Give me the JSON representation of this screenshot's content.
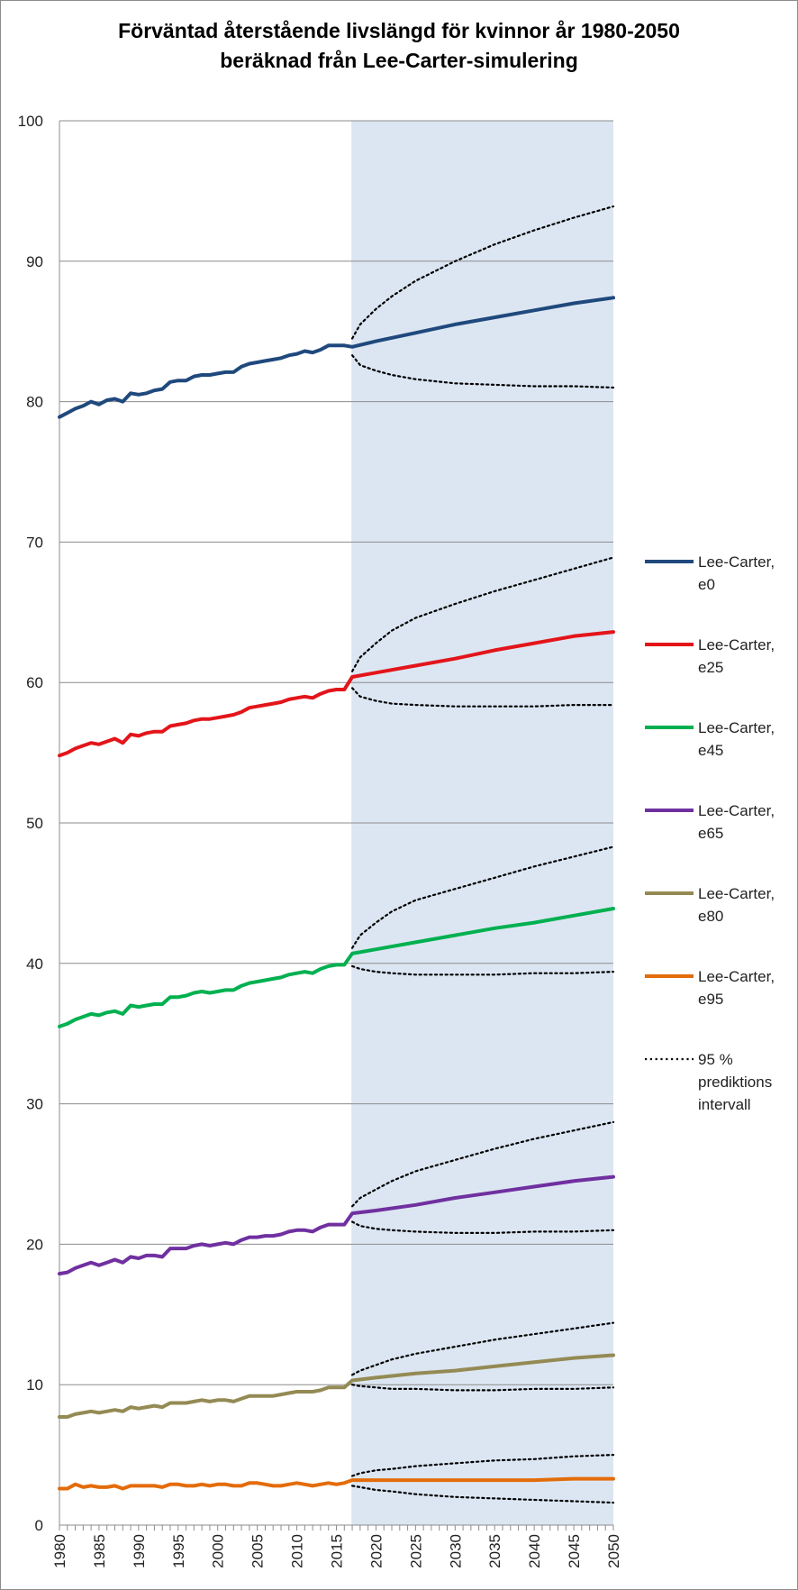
{
  "chart_data": {
    "type": "line",
    "title": "Förväntad återstående livslängd för kvinnor år 1980-2050",
    "subtitle": "beräknad från Lee-Carter-simulering",
    "xlabel": "",
    "ylabel": "",
    "xlim": [
      1980,
      2050
    ],
    "ylim": [
      0,
      100
    ],
    "y_ticks": [
      0,
      10,
      20,
      30,
      40,
      50,
      60,
      70,
      80,
      90,
      100
    ],
    "x_ticks": [
      1980,
      1985,
      1990,
      1995,
      2000,
      2005,
      2010,
      2015,
      2020,
      2025,
      2030,
      2035,
      2040,
      2045,
      2050
    ],
    "grid": "horizontal",
    "legend_position": "right",
    "forecast_shading": {
      "from": 2016.9,
      "to": 2050,
      "color": "#dce6f2"
    },
    "series": [
      {
        "name": "Lee-Carter, e0",
        "legend_lines": [
          "Lee-Carter,",
          "e0"
        ],
        "color": "#1f497d",
        "style": "solid",
        "x": [
          1980,
          1981,
          1982,
          1983,
          1984,
          1985,
          1986,
          1987,
          1988,
          1989,
          1990,
          1991,
          1992,
          1993,
          1994,
          1995,
          1996,
          1997,
          1998,
          1999,
          2000,
          2001,
          2002,
          2003,
          2004,
          2005,
          2006,
          2007,
          2008,
          2009,
          2010,
          2011,
          2012,
          2013,
          2014,
          2015,
          2016,
          2017,
          2020,
          2025,
          2030,
          2035,
          2040,
          2045,
          2050
        ],
        "y": [
          78.9,
          79.2,
          79.5,
          79.7,
          80.0,
          79.8,
          80.1,
          80.2,
          80.0,
          80.6,
          80.5,
          80.6,
          80.8,
          80.9,
          81.4,
          81.5,
          81.5,
          81.8,
          81.9,
          81.9,
          82.0,
          82.1,
          82.1,
          82.5,
          82.7,
          82.8,
          82.9,
          83.0,
          83.1,
          83.3,
          83.4,
          83.6,
          83.5,
          83.7,
          84.0,
          84.0,
          84.0,
          83.9,
          84.3,
          84.9,
          85.5,
          86.0,
          86.5,
          87.0,
          87.4
        ]
      },
      {
        "name": "Lee-Carter, e25",
        "legend_lines": [
          "Lee-Carter,",
          "e25"
        ],
        "color": "#e3151a",
        "style": "solid",
        "x": [
          1980,
          1981,
          1982,
          1983,
          1984,
          1985,
          1986,
          1987,
          1988,
          1989,
          1990,
          1991,
          1992,
          1993,
          1994,
          1995,
          1996,
          1997,
          1998,
          1999,
          2000,
          2001,
          2002,
          2003,
          2004,
          2005,
          2006,
          2007,
          2008,
          2009,
          2010,
          2011,
          2012,
          2013,
          2014,
          2015,
          2016,
          2017,
          2020,
          2025,
          2030,
          2035,
          2040,
          2045,
          2050
        ],
        "y": [
          54.8,
          55.0,
          55.3,
          55.5,
          55.7,
          55.6,
          55.8,
          56.0,
          55.7,
          56.3,
          56.2,
          56.4,
          56.5,
          56.5,
          56.9,
          57.0,
          57.1,
          57.3,
          57.4,
          57.4,
          57.5,
          57.6,
          57.7,
          57.9,
          58.2,
          58.3,
          58.4,
          58.5,
          58.6,
          58.8,
          58.9,
          59.0,
          58.9,
          59.2,
          59.4,
          59.5,
          59.5,
          60.4,
          60.7,
          61.2,
          61.7,
          62.3,
          62.8,
          63.3,
          63.6
        ]
      },
      {
        "name": "Lee-Carter, e45",
        "legend_lines": [
          "Lee-Carter,",
          "e45"
        ],
        "color": "#00b050",
        "style": "solid",
        "x": [
          1980,
          1981,
          1982,
          1983,
          1984,
          1985,
          1986,
          1987,
          1988,
          1989,
          1990,
          1991,
          1992,
          1993,
          1994,
          1995,
          1996,
          1997,
          1998,
          1999,
          2000,
          2001,
          2002,
          2003,
          2004,
          2005,
          2006,
          2007,
          2008,
          2009,
          2010,
          2011,
          2012,
          2013,
          2014,
          2015,
          2016,
          2017,
          2020,
          2025,
          2030,
          2035,
          2040,
          2045,
          2050
        ],
        "y": [
          35.5,
          35.7,
          36.0,
          36.2,
          36.4,
          36.3,
          36.5,
          36.6,
          36.4,
          37.0,
          36.9,
          37.0,
          37.1,
          37.1,
          37.6,
          37.6,
          37.7,
          37.9,
          38.0,
          37.9,
          38.0,
          38.1,
          38.1,
          38.4,
          38.6,
          38.7,
          38.8,
          38.9,
          39.0,
          39.2,
          39.3,
          39.4,
          39.3,
          39.6,
          39.8,
          39.9,
          39.9,
          40.7,
          41.0,
          41.5,
          42.0,
          42.5,
          42.9,
          43.4,
          43.9
        ]
      },
      {
        "name": "Lee-Carter, e65",
        "legend_lines": [
          "Lee-Carter,",
          "e65"
        ],
        "color": "#7030a0",
        "style": "solid",
        "x": [
          1980,
          1981,
          1982,
          1983,
          1984,
          1985,
          1986,
          1987,
          1988,
          1989,
          1990,
          1991,
          1992,
          1993,
          1994,
          1995,
          1996,
          1997,
          1998,
          1999,
          2000,
          2001,
          2002,
          2003,
          2004,
          2005,
          2006,
          2007,
          2008,
          2009,
          2010,
          2011,
          2012,
          2013,
          2014,
          2015,
          2016,
          2017,
          2020,
          2025,
          2030,
          2035,
          2040,
          2045,
          2050
        ],
        "y": [
          17.9,
          18.0,
          18.3,
          18.5,
          18.7,
          18.5,
          18.7,
          18.9,
          18.7,
          19.1,
          19.0,
          19.2,
          19.2,
          19.1,
          19.7,
          19.7,
          19.7,
          19.9,
          20.0,
          19.9,
          20.0,
          20.1,
          20.0,
          20.3,
          20.5,
          20.5,
          20.6,
          20.6,
          20.7,
          20.9,
          21.0,
          21.0,
          20.9,
          21.2,
          21.4,
          21.4,
          21.4,
          22.2,
          22.4,
          22.8,
          23.3,
          23.7,
          24.1,
          24.5,
          24.8
        ]
      },
      {
        "name": "Lee-Carter, e80",
        "legend_lines": [
          "Lee-Carter,",
          "e80"
        ],
        "color": "#948a54",
        "style": "solid",
        "x": [
          1980,
          1981,
          1982,
          1983,
          1984,
          1985,
          1986,
          1987,
          1988,
          1989,
          1990,
          1991,
          1992,
          1993,
          1994,
          1995,
          1996,
          1997,
          1998,
          1999,
          2000,
          2001,
          2002,
          2003,
          2004,
          2005,
          2006,
          2007,
          2008,
          2009,
          2010,
          2011,
          2012,
          2013,
          2014,
          2015,
          2016,
          2017,
          2020,
          2025,
          2030,
          2035,
          2040,
          2045,
          2050
        ],
        "y": [
          7.7,
          7.7,
          7.9,
          8.0,
          8.1,
          8.0,
          8.1,
          8.2,
          8.1,
          8.4,
          8.3,
          8.4,
          8.5,
          8.4,
          8.7,
          8.7,
          8.7,
          8.8,
          8.9,
          8.8,
          8.9,
          8.9,
          8.8,
          9.0,
          9.2,
          9.2,
          9.2,
          9.2,
          9.3,
          9.4,
          9.5,
          9.5,
          9.5,
          9.6,
          9.8,
          9.8,
          9.8,
          10.3,
          10.5,
          10.8,
          11.0,
          11.3,
          11.6,
          11.9,
          12.1
        ]
      },
      {
        "name": "Lee-Carter, e95",
        "legend_lines": [
          "Lee-Carter,",
          "e95"
        ],
        "color": "#e36c0a",
        "style": "solid",
        "x": [
          1980,
          1981,
          1982,
          1983,
          1984,
          1985,
          1986,
          1987,
          1988,
          1989,
          1990,
          1991,
          1992,
          1993,
          1994,
          1995,
          1996,
          1997,
          1998,
          1999,
          2000,
          2001,
          2002,
          2003,
          2004,
          2005,
          2006,
          2007,
          2008,
          2009,
          2010,
          2011,
          2012,
          2013,
          2014,
          2015,
          2016,
          2017,
          2020,
          2025,
          2030,
          2035,
          2040,
          2045,
          2050
        ],
        "y": [
          2.6,
          2.6,
          2.9,
          2.7,
          2.8,
          2.7,
          2.7,
          2.8,
          2.6,
          2.8,
          2.8,
          2.8,
          2.8,
          2.7,
          2.9,
          2.9,
          2.8,
          2.8,
          2.9,
          2.8,
          2.9,
          2.9,
          2.8,
          2.8,
          3.0,
          3.0,
          2.9,
          2.8,
          2.8,
          2.9,
          3.0,
          2.9,
          2.8,
          2.9,
          3.0,
          2.9,
          3.0,
          3.2,
          3.2,
          3.2,
          3.2,
          3.2,
          3.2,
          3.3,
          3.3
        ]
      },
      {
        "name": "95 % prediktions intervall",
        "legend_lines": [
          "95 %",
          "prediktions",
          "intervall"
        ],
        "color": "#000000",
        "style": "dotted",
        "bands": [
          {
            "x": [
              2017,
              2018,
              2020,
              2022,
              2025,
              2030,
              2035,
              2040,
              2045,
              2050
            ],
            "upper": [
              84.5,
              85.5,
              86.6,
              87.5,
              88.6,
              90.0,
              91.2,
              92.2,
              93.1,
              93.9
            ],
            "lower": [
              83.3,
              82.6,
              82.2,
              81.9,
              81.6,
              81.3,
              81.2,
              81.1,
              81.1,
              81.0
            ]
          },
          {
            "x": [
              2017,
              2018,
              2020,
              2022,
              2025,
              2030,
              2035,
              2040,
              2045,
              2050
            ],
            "upper": [
              60.8,
              61.8,
              62.8,
              63.7,
              64.6,
              65.6,
              66.5,
              67.3,
              68.1,
              68.9
            ],
            "lower": [
              59.6,
              59.0,
              58.7,
              58.5,
              58.4,
              58.3,
              58.3,
              58.3,
              58.4,
              58.4
            ]
          },
          {
            "x": [
              2017,
              2018,
              2020,
              2022,
              2025,
              2030,
              2035,
              2040,
              2045,
              2050
            ],
            "upper": [
              41.1,
              42.0,
              42.9,
              43.7,
              44.5,
              45.3,
              46.1,
              46.9,
              47.6,
              48.3
            ],
            "lower": [
              39.8,
              39.6,
              39.4,
              39.3,
              39.2,
              39.2,
              39.2,
              39.3,
              39.3,
              39.4
            ]
          },
          {
            "x": [
              2017,
              2018,
              2020,
              2022,
              2025,
              2030,
              2035,
              2040,
              2045,
              2050
            ],
            "upper": [
              22.7,
              23.3,
              23.9,
              24.5,
              25.2,
              26.0,
              26.8,
              27.5,
              28.1,
              28.7
            ],
            "lower": [
              21.6,
              21.3,
              21.1,
              21.0,
              20.9,
              20.8,
              20.8,
              20.9,
              20.9,
              21.0
            ]
          },
          {
            "x": [
              2017,
              2018,
              2020,
              2022,
              2025,
              2030,
              2035,
              2040,
              2045,
              2050
            ],
            "upper": [
              10.7,
              11.0,
              11.4,
              11.8,
              12.2,
              12.7,
              13.2,
              13.6,
              14.0,
              14.4
            ],
            "lower": [
              10.0,
              9.9,
              9.8,
              9.7,
              9.7,
              9.6,
              9.6,
              9.7,
              9.7,
              9.8
            ]
          },
          {
            "x": [
              2017,
              2018,
              2020,
              2022,
              2025,
              2030,
              2035,
              2040,
              2045,
              2050
            ],
            "upper": [
              3.5,
              3.7,
              3.9,
              4.0,
              4.2,
              4.4,
              4.6,
              4.7,
              4.9,
              5.0
            ],
            "lower": [
              2.8,
              2.7,
              2.5,
              2.4,
              2.2,
              2.0,
              1.9,
              1.8,
              1.7,
              1.6
            ]
          }
        ]
      }
    ]
  }
}
